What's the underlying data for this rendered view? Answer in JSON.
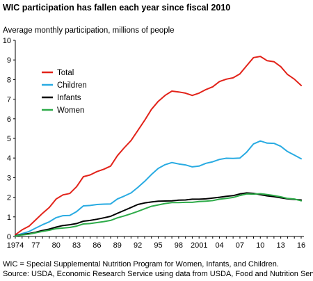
{
  "title": "WIC participation has fallen each year since fiscal 2010",
  "chart_data": {
    "type": "line",
    "title": "WIC participation has fallen each year since fiscal 2010",
    "ylabel": "Average monthly participation, millions of people",
    "xlabel": "",
    "x": [
      1974,
      1975,
      1976,
      1977,
      1978,
      1979,
      1980,
      1981,
      1982,
      1983,
      1984,
      1985,
      1986,
      1987,
      1988,
      1989,
      1990,
      1991,
      1992,
      1993,
      1994,
      1995,
      1996,
      1997,
      1998,
      1999,
      2000,
      2001,
      2002,
      2003,
      2004,
      2005,
      2006,
      2007,
      2008,
      2009,
      2010,
      2011,
      2012,
      2013,
      2014,
      2015,
      2016
    ],
    "x_tick_labels": [
      {
        "x": 1974,
        "label": "1974"
      },
      {
        "x": 1977,
        "label": "77"
      },
      {
        "x": 1980,
        "label": "80"
      },
      {
        "x": 1983,
        "label": "83"
      },
      {
        "x": 1986,
        "label": "86"
      },
      {
        "x": 1989,
        "label": "89"
      },
      {
        "x": 1992,
        "label": "92"
      },
      {
        "x": 1995,
        "label": "95"
      },
      {
        "x": 1998,
        "label": "98"
      },
      {
        "x": 2001,
        "label": "2001"
      },
      {
        "x": 2004,
        "label": "04"
      },
      {
        "x": 2007,
        "label": "07"
      },
      {
        "x": 2010,
        "label": "10"
      },
      {
        "x": 2013,
        "label": "13"
      },
      {
        "x": 2016,
        "label": "16"
      }
    ],
    "y_ticks": [
      0,
      1,
      2,
      3,
      4,
      5,
      6,
      7,
      8,
      9,
      10
    ],
    "xlim": [
      1974,
      2016
    ],
    "ylim": [
      0,
      10
    ],
    "grid": false,
    "legend_position": "upper-left",
    "series": [
      {
        "name": "Total",
        "color": "#e2231a",
        "values": [
          0.09,
          0.34,
          0.52,
          0.85,
          1.18,
          1.48,
          1.91,
          2.12,
          2.19,
          2.54,
          3.05,
          3.14,
          3.31,
          3.43,
          3.59,
          4.12,
          4.52,
          4.89,
          5.4,
          5.92,
          6.48,
          6.89,
          7.19,
          7.41,
          7.37,
          7.31,
          7.19,
          7.31,
          7.49,
          7.63,
          7.9,
          8.02,
          8.09,
          8.29,
          8.71,
          9.12,
          9.18,
          8.96,
          8.91,
          8.66,
          8.26,
          8.02,
          7.7
        ]
      },
      {
        "name": "Children",
        "color": "#29abe2",
        "values": [
          0.03,
          0.15,
          0.25,
          0.43,
          0.6,
          0.75,
          0.96,
          1.06,
          1.07,
          1.27,
          1.56,
          1.58,
          1.63,
          1.65,
          1.66,
          1.91,
          2.06,
          2.22,
          2.5,
          2.81,
          3.16,
          3.47,
          3.66,
          3.77,
          3.7,
          3.65,
          3.55,
          3.59,
          3.73,
          3.81,
          3.93,
          3.99,
          3.98,
          4.0,
          4.3,
          4.72,
          4.87,
          4.76,
          4.75,
          4.6,
          4.33,
          4.15,
          3.96
        ]
      },
      {
        "name": "Infants",
        "color": "#000000",
        "values": [
          0.04,
          0.1,
          0.15,
          0.22,
          0.31,
          0.38,
          0.48,
          0.56,
          0.6,
          0.66,
          0.78,
          0.82,
          0.88,
          0.95,
          1.03,
          1.18,
          1.33,
          1.48,
          1.63,
          1.71,
          1.76,
          1.8,
          1.81,
          1.82,
          1.85,
          1.86,
          1.9,
          1.9,
          1.92,
          1.96,
          2.0,
          2.05,
          2.08,
          2.17,
          2.22,
          2.2,
          2.13,
          2.07,
          2.03,
          1.97,
          1.92,
          1.89,
          1.86
        ]
      },
      {
        "name": "Women",
        "color": "#2eab49",
        "values": [
          0.02,
          0.08,
          0.12,
          0.19,
          0.26,
          0.32,
          0.4,
          0.43,
          0.46,
          0.53,
          0.64,
          0.66,
          0.71,
          0.76,
          0.82,
          0.95,
          1.05,
          1.16,
          1.28,
          1.41,
          1.54,
          1.61,
          1.68,
          1.73,
          1.73,
          1.74,
          1.74,
          1.78,
          1.8,
          1.83,
          1.9,
          1.94,
          1.99,
          2.09,
          2.17,
          2.16,
          2.18,
          2.14,
          2.09,
          2.02,
          1.94,
          1.91,
          1.82
        ]
      }
    ]
  },
  "footnote": {
    "line1": "WIC = Special Supplemental Nutrition Program for Women, Infants, and Children.",
    "line2": "Source: USDA, Economic Research Service using data from USDA, Food and Nutrition Service."
  }
}
